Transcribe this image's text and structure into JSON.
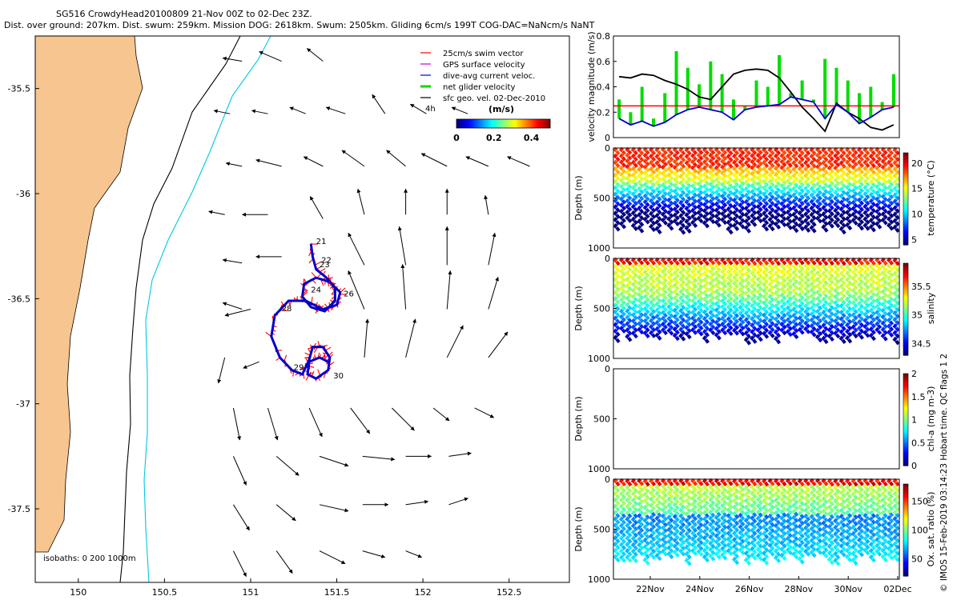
{
  "header": {
    "line1": "SG516 CrowdyHead20100809 21-Nov 00Z to 02-Dec 23Z.",
    "line2": "Dist. over ground: 207km. Dist. swum: 259km. Mission DOG: 2618km. Swum: 2505km. Gliding 6cm/s 199T COG-DAC=NaNcm/s NaNT"
  },
  "credit": "© IMOS 15-Feb-2019 03:14:23 Hobart time. QC flags 1  2",
  "colors": {
    "land": "#f7c690",
    "swim": "#ff0000",
    "gps": "#cc00cc",
    "dac": "#0000cc",
    "net": "#00dd00",
    "ref_line": "#ff0000",
    "isobath_200": "#000000",
    "isobath_1000": "#00c8e0"
  },
  "chart_data": [
    {
      "type": "scatter",
      "name": "map",
      "xlabel": "",
      "ylabel": "",
      "xlim": [
        149.75,
        152.85
      ],
      "ylim": [
        -37.85,
        -35.25
      ],
      "xticks": [
        "150",
        "150.5",
        "151",
        "151.5",
        "152",
        "152.5"
      ],
      "yticks": [
        "-35.5",
        "-36",
        "-36.5",
        "-37",
        "-37.5"
      ],
      "legend": {
        "placement": "top-right",
        "entries": [
          "25cm/s swim vector",
          "GPS surface velocity",
          "dive-avg current veloc.",
          "net glider velocity",
          "sfc geo. vel. 02-Dec-2010"
        ]
      },
      "scale_label": "4h",
      "colorbar": {
        "title": "(m/s)",
        "ticks": [
          "0",
          "0.2",
          "0.4"
        ],
        "range": [
          0,
          0.5
        ]
      },
      "isobath_label": "isobaths: 0   200   1000m",
      "day_labels": [
        {
          "text": "21",
          "lon": 151.38,
          "lat": -36.24
        },
        {
          "text": "22",
          "lon": 151.41,
          "lat": -36.33
        },
        {
          "text": "23",
          "lon": 151.4,
          "lat": -36.35
        },
        {
          "text": "24",
          "lon": 151.35,
          "lat": -36.47
        },
        {
          "text": "26",
          "lon": 151.54,
          "lat": -36.49
        },
        {
          "text": "28",
          "lon": 151.18,
          "lat": -36.56
        },
        {
          "text": "29",
          "lon": 151.25,
          "lat": -36.84
        },
        {
          "text": "30",
          "lon": 151.48,
          "lat": -36.88
        }
      ],
      "track": [
        [
          151.35,
          -36.24
        ],
        [
          151.36,
          -36.3
        ],
        [
          151.38,
          -36.36
        ],
        [
          151.44,
          -36.4
        ],
        [
          151.49,
          -36.45
        ],
        [
          151.49,
          -36.51
        ],
        [
          151.43,
          -36.56
        ],
        [
          151.35,
          -36.54
        ],
        [
          151.3,
          -36.49
        ],
        [
          151.31,
          -36.43
        ],
        [
          151.38,
          -36.4
        ],
        [
          151.46,
          -36.42
        ],
        [
          151.52,
          -36.47
        ],
        [
          151.5,
          -36.53
        ],
        [
          151.42,
          -36.55
        ],
        [
          151.32,
          -36.51
        ],
        [
          151.22,
          -36.51
        ],
        [
          151.14,
          -36.58
        ],
        [
          151.12,
          -36.68
        ],
        [
          151.17,
          -36.78
        ],
        [
          151.24,
          -36.84
        ],
        [
          151.3,
          -36.86
        ],
        [
          151.34,
          -36.79
        ],
        [
          151.36,
          -36.73
        ],
        [
          151.42,
          -36.73
        ],
        [
          151.46,
          -36.78
        ],
        [
          151.45,
          -36.84
        ],
        [
          151.38,
          -36.88
        ],
        [
          151.33,
          -36.86
        ],
        [
          151.34,
          -36.8
        ],
        [
          151.4,
          -36.78
        ],
        [
          151.45,
          -36.8
        ]
      ],
      "vectors": [
        [
          150.95,
          -35.37,
          -0.06,
          0.01
        ],
        [
          151.18,
          -35.37,
          -0.07,
          0.03
        ],
        [
          151.42,
          -35.37,
          -0.05,
          0.04
        ],
        [
          150.88,
          -35.62,
          -0.05,
          0.01
        ],
        [
          151.1,
          -35.62,
          -0.05,
          0.01
        ],
        [
          151.32,
          -35.62,
          -0.05,
          0.02
        ],
        [
          151.55,
          -35.62,
          -0.06,
          0.02
        ],
        [
          151.78,
          -35.62,
          -0.04,
          0.06
        ],
        [
          152.02,
          -35.62,
          -0.05,
          0.03
        ],
        [
          152.26,
          -35.62,
          -0.05,
          0.02
        ],
        [
          150.95,
          -35.87,
          -0.05,
          0.01
        ],
        [
          151.18,
          -35.87,
          -0.08,
          0.02
        ],
        [
          151.42,
          -35.87,
          -0.06,
          0.03
        ],
        [
          151.66,
          -35.87,
          -0.07,
          0.05
        ],
        [
          151.9,
          -35.87,
          -0.06,
          0.05
        ],
        [
          152.14,
          -35.87,
          -0.08,
          0.04
        ],
        [
          152.38,
          -35.87,
          -0.07,
          0.03
        ],
        [
          152.62,
          -35.87,
          -0.07,
          0.03
        ],
        [
          150.85,
          -36.1,
          -0.05,
          0.01
        ],
        [
          151.1,
          -36.1,
          -0.08,
          0.0
        ],
        [
          151.42,
          -36.12,
          -0.04,
          0.07
        ],
        [
          151.66,
          -36.1,
          -0.02,
          0.08
        ],
        [
          151.9,
          -36.1,
          0.0,
          0.08
        ],
        [
          152.14,
          -36.1,
          0.0,
          0.08
        ],
        [
          152.38,
          -36.1,
          -0.01,
          0.06
        ],
        [
          150.95,
          -36.33,
          -0.06,
          0.01
        ],
        [
          151.18,
          -36.3,
          -0.08,
          0.0
        ],
        [
          151.66,
          -36.34,
          -0.05,
          0.1
        ],
        [
          151.9,
          -36.34,
          -0.02,
          0.12
        ],
        [
          152.14,
          -36.34,
          0.0,
          0.12
        ],
        [
          152.38,
          -36.34,
          0.02,
          0.1
        ],
        [
          150.95,
          -36.55,
          -0.06,
          0.02
        ],
        [
          151.0,
          -36.55,
          -0.08,
          -0.02
        ],
        [
          151.66,
          -36.55,
          -0.05,
          0.12
        ],
        [
          151.9,
          -36.55,
          -0.01,
          0.14
        ],
        [
          152.14,
          -36.55,
          0.01,
          0.12
        ],
        [
          152.38,
          -36.55,
          0.03,
          0.1
        ],
        [
          150.85,
          -36.78,
          -0.02,
          -0.08
        ],
        [
          151.05,
          -36.8,
          -0.05,
          -0.02
        ],
        [
          151.66,
          -36.78,
          0.01,
          0.12
        ],
        [
          151.9,
          -36.78,
          0.03,
          0.12
        ],
        [
          152.14,
          -36.78,
          0.05,
          0.1
        ],
        [
          152.38,
          -36.78,
          0.06,
          0.08
        ],
        [
          150.9,
          -37.02,
          0.02,
          -0.1
        ],
        [
          151.1,
          -37.02,
          0.03,
          -0.1
        ],
        [
          151.34,
          -37.02,
          0.04,
          -0.09
        ],
        [
          151.58,
          -37.02,
          0.06,
          -0.08
        ],
        [
          151.82,
          -37.02,
          0.07,
          -0.07
        ],
        [
          152.06,
          -37.02,
          0.05,
          -0.04
        ],
        [
          152.3,
          -37.02,
          0.06,
          -0.03
        ],
        [
          150.9,
          -37.25,
          0.04,
          -0.09
        ],
        [
          151.15,
          -37.25,
          0.07,
          -0.06
        ],
        [
          151.4,
          -37.25,
          0.09,
          -0.03
        ],
        [
          151.65,
          -37.25,
          0.1,
          -0.01
        ],
        [
          151.9,
          -37.25,
          0.08,
          0.0
        ],
        [
          152.15,
          -37.25,
          0.07,
          0.01
        ],
        [
          150.9,
          -37.48,
          0.05,
          -0.08
        ],
        [
          151.15,
          -37.48,
          0.06,
          -0.05
        ],
        [
          151.4,
          -37.48,
          0.09,
          -0.02
        ],
        [
          151.65,
          -37.48,
          0.08,
          0.0
        ],
        [
          151.9,
          -37.48,
          0.07,
          0.01
        ],
        [
          152.15,
          -37.48,
          0.06,
          0.02
        ],
        [
          150.9,
          -37.7,
          0.04,
          -0.08
        ],
        [
          151.15,
          -37.7,
          0.05,
          -0.07
        ],
        [
          151.4,
          -37.7,
          0.08,
          -0.04
        ],
        [
          151.65,
          -37.7,
          0.07,
          -0.02
        ],
        [
          151.9,
          -37.7,
          0.05,
          -0.02
        ]
      ]
    },
    {
      "type": "line",
      "name": "velocity",
      "ylabel": "velocity magnitude (m/s)",
      "ylim": [
        0,
        0.8
      ],
      "yticks": [
        "0",
        "0.2",
        "0.4",
        "0.6",
        "0.8"
      ],
      "xlim": [
        0,
        12
      ],
      "series": [
        {
          "values": [
            0.48,
            0.47,
            0.5,
            0.49,
            0.45,
            0.42,
            0.38,
            0.32,
            0.3,
            0.4,
            0.5,
            0.53,
            0.54,
            0.53,
            0.47,
            0.36,
            0.24,
            0.15,
            0.05,
            0.27,
            0.2,
            0.15,
            0.08,
            0.06,
            0.1
          ]
        },
        {
          "values": [
            0.15,
            0.1,
            0.13,
            0.09,
            0.12,
            0.18,
            0.22,
            0.24,
            0.22,
            0.2,
            0.14,
            0.22,
            0.24,
            0.25,
            0.26,
            0.32,
            0.3,
            0.28,
            0.15,
            0.26,
            0.2,
            0.11,
            0.16,
            0.22,
            0.24
          ]
        }
      ],
      "bars": [
        0.3,
        0.2,
        0.4,
        0.15,
        0.35,
        0.68,
        0.55,
        0.42,
        0.6,
        0.5,
        0.3,
        0.25,
        0.45,
        0.4,
        0.65,
        0.35,
        0.45,
        0.3,
        0.62,
        0.55,
        0.45,
        0.35,
        0.4,
        0.28,
        0.5
      ],
      "ref_value": 0.25
    },
    {
      "type": "heatmap",
      "name": "temperature",
      "ylabel": "Depth (m)",
      "clabel": "temperature (°C)",
      "ylim": [
        1000,
        0
      ],
      "yticks": [
        "0",
        "500",
        "1000"
      ],
      "cticks": [
        "20",
        "15",
        "10",
        "5"
      ],
      "crange": [
        4,
        22
      ]
    },
    {
      "type": "heatmap",
      "name": "salinity",
      "ylabel": "Depth (m)",
      "clabel": "salinity",
      "ylim": [
        1000,
        0
      ],
      "yticks": [
        "0",
        "500",
        "1000"
      ],
      "cticks": [
        "35.5",
        "35",
        "34.5"
      ],
      "crange": [
        34.3,
        35.9
      ]
    },
    {
      "type": "heatmap",
      "name": "chl-a",
      "ylabel": "Depth (m)",
      "clabel": "chl-a (mg m-3)",
      "ylim": [
        1000,
        0
      ],
      "yticks": [
        "0",
        "500",
        "1000"
      ],
      "cticks": [
        "2",
        "1.5",
        "1",
        "0.5",
        "0"
      ],
      "crange": [
        0,
        2
      ]
    },
    {
      "type": "heatmap",
      "name": "oxygen",
      "ylabel": "Depth (m)",
      "clabel": "Ox. sat. ratio (%)",
      "ylim": [
        1000,
        0
      ],
      "yticks": [
        "0",
        "500",
        "1000"
      ],
      "cticks": [
        "150",
        "100",
        "50"
      ],
      "crange": [
        20,
        180
      ],
      "xticks": [
        "22Nov",
        "24Nov",
        "26Nov",
        "28Nov",
        "30Nov",
        "02Dec"
      ]
    }
  ]
}
